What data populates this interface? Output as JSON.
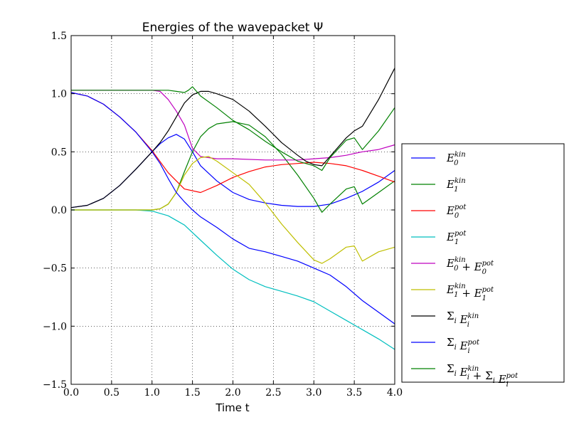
{
  "chart_data": {
    "type": "line",
    "title": "Energies of the wavepacket Ψ",
    "xlabel": "Time t",
    "ylabel": "",
    "xlim": [
      0.0,
      4.0
    ],
    "ylim": [
      -1.5,
      1.5
    ],
    "xticks": [
      "0.0",
      "0.5",
      "1.0",
      "1.5",
      "2.0",
      "2.5",
      "3.0",
      "3.5",
      "4.0"
    ],
    "yticks": [
      "1.5",
      "1.0",
      "0.5",
      "0.0",
      "−0.5",
      "−1.0",
      "−1.5"
    ],
    "grid": true,
    "legend_position": "outside-right",
    "series": [
      {
        "name": "E_0^kin",
        "color": "#0000ff",
        "x": [
          0,
          0.2,
          0.4,
          0.6,
          0.8,
          1.0,
          1.1,
          1.2,
          1.3,
          1.4,
          1.5,
          1.6,
          1.8,
          2.0,
          2.2,
          2.4,
          2.6,
          2.8,
          3.0,
          3.2,
          3.4,
          3.6,
          3.8,
          4.0
        ],
        "y": [
          0.02,
          0.04,
          0.1,
          0.21,
          0.35,
          0.5,
          0.57,
          0.62,
          0.65,
          0.61,
          0.5,
          0.38,
          0.25,
          0.15,
          0.09,
          0.06,
          0.04,
          0.03,
          0.03,
          0.05,
          0.1,
          0.16,
          0.24,
          0.34
        ]
      },
      {
        "name": "E_1^kin",
        "color": "#008000",
        "x": [
          0,
          0.4,
          0.8,
          1.0,
          1.1,
          1.2,
          1.3,
          1.4,
          1.5,
          1.6,
          1.7,
          1.8,
          2.0,
          2.2,
          2.4,
          2.6,
          2.8,
          3.0,
          3.1,
          3.2,
          3.4,
          3.5,
          3.6,
          3.8,
          4.0
        ],
        "y": [
          0,
          0,
          0,
          0,
          0.01,
          0.05,
          0.15,
          0.33,
          0.5,
          0.63,
          0.7,
          0.74,
          0.76,
          0.73,
          0.63,
          0.48,
          0.3,
          0.1,
          -0.02,
          0.05,
          0.18,
          0.2,
          0.05,
          0.15,
          0.25
        ]
      },
      {
        "name": "E_0^pot",
        "color": "#ff0000",
        "x": [
          0,
          0.2,
          0.4,
          0.6,
          0.8,
          1.0,
          1.2,
          1.4,
          1.6,
          1.8,
          2.0,
          2.2,
          2.4,
          2.6,
          2.8,
          3.0,
          3.2,
          3.4,
          3.6,
          3.8,
          4.0
        ],
        "y": [
          1.01,
          0.98,
          0.91,
          0.8,
          0.67,
          0.51,
          0.32,
          0.18,
          0.15,
          0.21,
          0.28,
          0.33,
          0.37,
          0.39,
          0.4,
          0.41,
          0.4,
          0.38,
          0.34,
          0.29,
          0.24
        ]
      },
      {
        "name": "E_1^pot",
        "color": "#00bfbf",
        "x": [
          0,
          0.4,
          0.8,
          1.0,
          1.2,
          1.4,
          1.6,
          1.8,
          2.0,
          2.2,
          2.4,
          2.6,
          2.8,
          3.0,
          3.2,
          3.4,
          3.6,
          3.8,
          4.0
        ],
        "y": [
          0,
          0,
          0,
          -0.01,
          -0.05,
          -0.13,
          -0.26,
          -0.39,
          -0.51,
          -0.6,
          -0.66,
          -0.7,
          -0.74,
          -0.79,
          -0.87,
          -0.95,
          -1.03,
          -1.11,
          -1.2
        ]
      },
      {
        "name": "E_0^kin + E_0^pot",
        "color": "#bf00bf",
        "x": [
          0,
          0.4,
          0.8,
          1.0,
          1.1,
          1.2,
          1.3,
          1.4,
          1.5,
          1.6,
          1.8,
          2.0,
          2.4,
          2.8,
          3.0,
          3.2,
          3.4,
          3.6,
          3.8,
          4.0
        ],
        "y": [
          1.03,
          1.03,
          1.03,
          1.03,
          1.02,
          0.95,
          0.85,
          0.73,
          0.53,
          0.46,
          0.44,
          0.44,
          0.43,
          0.43,
          0.44,
          0.45,
          0.47,
          0.5,
          0.52,
          0.56
        ]
      },
      {
        "name": "E_1^kin + E_1^pot",
        "color": "#bfbf00",
        "x": [
          0,
          0.4,
          0.8,
          1.0,
          1.1,
          1.2,
          1.3,
          1.4,
          1.5,
          1.6,
          1.7,
          1.8,
          2.0,
          2.2,
          2.4,
          2.6,
          2.8,
          3.0,
          3.1,
          3.2,
          3.4,
          3.5,
          3.6,
          3.8,
          4.0
        ],
        "y": [
          0,
          0,
          0,
          0,
          0.01,
          0.05,
          0.15,
          0.3,
          0.4,
          0.45,
          0.46,
          0.42,
          0.32,
          0.22,
          0.06,
          -0.12,
          -0.28,
          -0.43,
          -0.46,
          -0.42,
          -0.32,
          -0.31,
          -0.44,
          -0.36,
          -0.32
        ]
      },
      {
        "name": "Σ_i E_i^kin",
        "color": "#000000",
        "x": [
          0,
          0.2,
          0.4,
          0.6,
          0.8,
          1.0,
          1.1,
          1.2,
          1.3,
          1.4,
          1.5,
          1.6,
          1.7,
          1.8,
          2.0,
          2.2,
          2.4,
          2.6,
          2.8,
          2.9,
          3.0,
          3.1,
          3.2,
          3.4,
          3.5,
          3.6,
          3.8,
          4.0
        ],
        "y": [
          0.02,
          0.04,
          0.1,
          0.21,
          0.35,
          0.5,
          0.58,
          0.68,
          0.8,
          0.92,
          0.99,
          1.02,
          1.02,
          1.0,
          0.95,
          0.85,
          0.72,
          0.58,
          0.47,
          0.42,
          0.39,
          0.38,
          0.46,
          0.62,
          0.68,
          0.72,
          0.95,
          1.22
        ]
      },
      {
        "name": "Σ_i E_i^pot",
        "color": "#0000ff",
        "x": [
          0,
          0.2,
          0.4,
          0.6,
          0.8,
          1.0,
          1.1,
          1.2,
          1.3,
          1.4,
          1.5,
          1.6,
          1.8,
          2.0,
          2.2,
          2.4,
          2.6,
          2.8,
          3.0,
          3.2,
          3.4,
          3.6,
          3.8,
          4.0
        ],
        "y": [
          1.01,
          0.98,
          0.91,
          0.8,
          0.67,
          0.5,
          0.4,
          0.27,
          0.15,
          0.07,
          0.0,
          -0.06,
          -0.15,
          -0.25,
          -0.33,
          -0.36,
          -0.4,
          -0.44,
          -0.5,
          -0.56,
          -0.66,
          -0.78,
          -0.88,
          -0.98
        ]
      },
      {
        "name": "Σ_i E_i^kin + Σ_i E_i^pot",
        "color": "#008000",
        "x": [
          0,
          0.4,
          0.8,
          1.0,
          1.2,
          1.3,
          1.4,
          1.45,
          1.5,
          1.55,
          1.6,
          1.8,
          2.0,
          2.2,
          2.4,
          2.6,
          2.8,
          3.0,
          3.1,
          3.2,
          3.4,
          3.5,
          3.6,
          3.8,
          4.0
        ],
        "y": [
          1.03,
          1.03,
          1.03,
          1.03,
          1.03,
          1.02,
          1.01,
          1.03,
          1.06,
          1.02,
          0.98,
          0.88,
          0.77,
          0.69,
          0.59,
          0.5,
          0.42,
          0.38,
          0.34,
          0.45,
          0.6,
          0.62,
          0.52,
          0.68,
          0.88
        ]
      }
    ]
  }
}
